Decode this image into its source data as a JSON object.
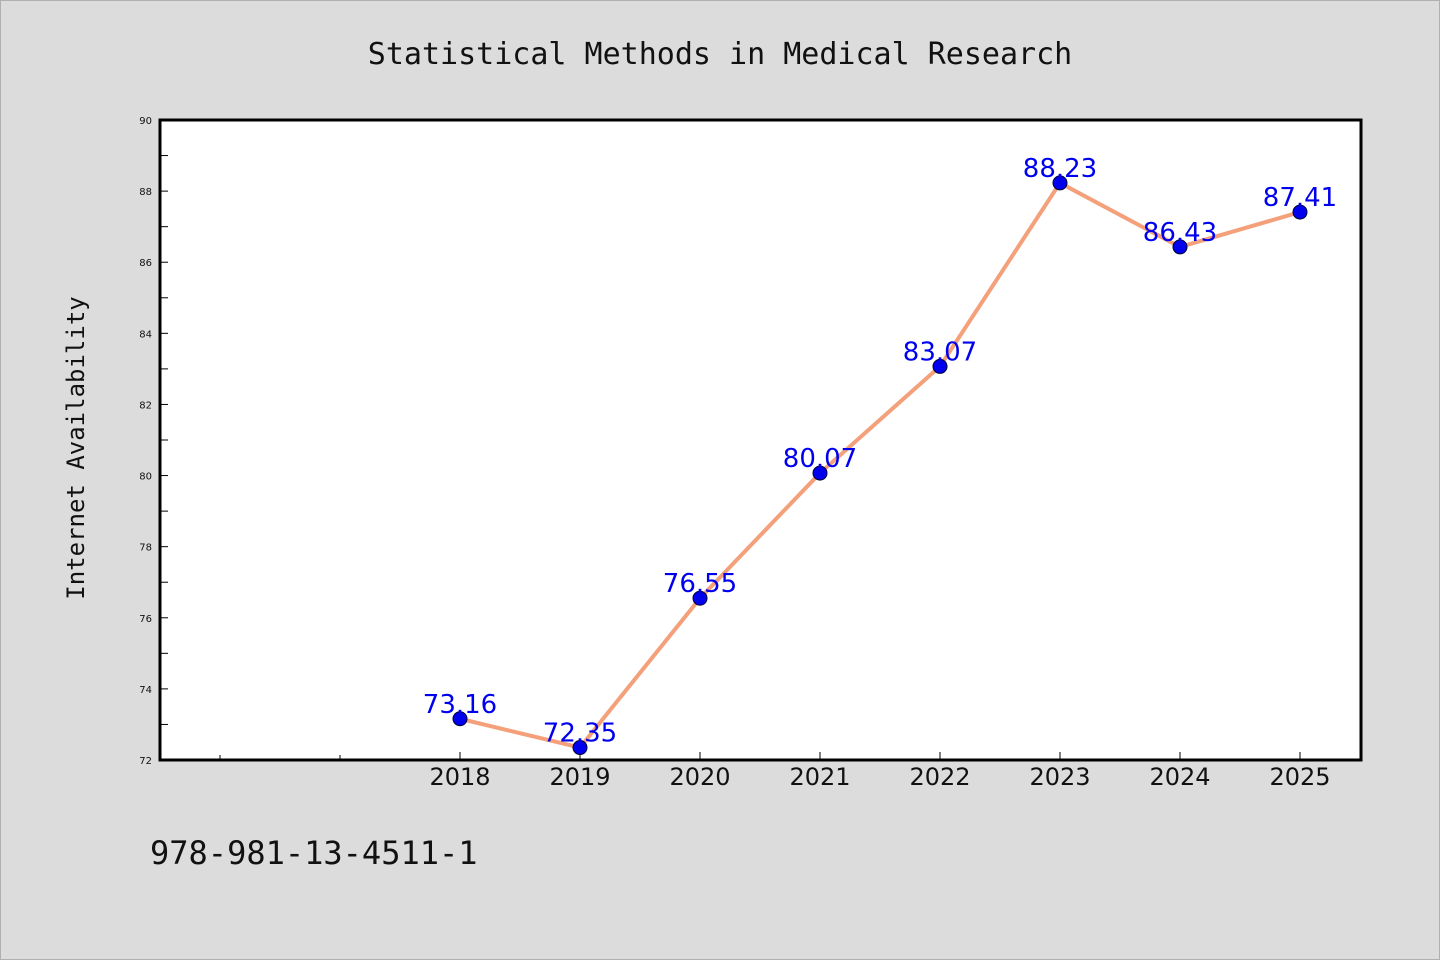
{
  "chart_data": {
    "type": "line",
    "title": "Statistical Methods in Medical Research",
    "ylabel": "Internet Availability",
    "xlabel": "",
    "categories": [
      "2018",
      "2019",
      "2020",
      "2021",
      "2022",
      "2023",
      "2024",
      "2025"
    ],
    "series": [
      {
        "values": [
          73.16,
          72.35,
          76.55,
          80.07,
          83.07,
          88.23,
          86.43,
          87.41
        ],
        "data_labels": [
          "73.16",
          "72.35",
          "76.55",
          "80.07",
          "83.07",
          "88.23",
          "86.43",
          "87.41"
        ]
      }
    ],
    "ylim": [
      72,
      90
    ],
    "yticks": [
      "72",
      "74",
      "76",
      "78",
      "80",
      "82",
      "84",
      "86",
      "88",
      "90"
    ],
    "grid": false,
    "line_color": "#f4a07a",
    "marker_color": "#0000ee",
    "label_color": "#0000ee"
  },
  "footer": {
    "isbn": "978-981-13-4511-1"
  }
}
